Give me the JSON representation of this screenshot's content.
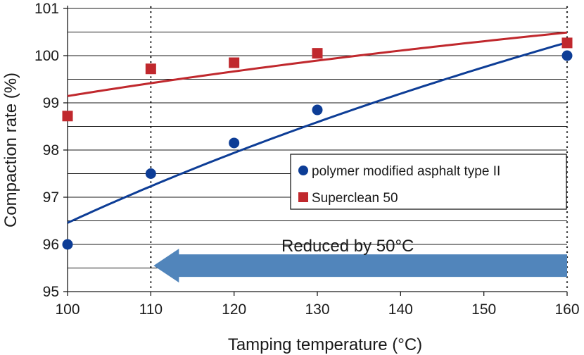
{
  "chart_data": {
    "type": "scatter",
    "xlabel": "Tamping temperature (°C)",
    "ylabel": "Compaction rate (%)",
    "xlim": [
      100,
      160
    ],
    "ylim": [
      95,
      101
    ],
    "xticks": [
      "100",
      "110",
      "120",
      "130",
      "140",
      "150",
      "160"
    ],
    "yticks": [
      "95",
      "96",
      "97",
      "98",
      "99",
      "100",
      "101"
    ],
    "grid": "horizontal at every 0.5%",
    "legend_position": "right, middle",
    "series": [
      {
        "name": "polymer modified asphalt type II",
        "color": "#0d3d96",
        "marker": "circle",
        "x": [
          100,
          110,
          120,
          130,
          160
        ],
        "y": [
          96.0,
          97.5,
          98.15,
          98.85,
          100.0
        ]
      },
      {
        "name": "Superclean 50",
        "color": "#c0282d",
        "marker": "square",
        "x": [
          100,
          110,
          120,
          130,
          160
        ],
        "y": [
          98.72,
          99.72,
          99.85,
          100.05,
          100.27
        ]
      }
    ],
    "reference_lines_x": [
      110,
      160
    ],
    "annotation": {
      "text": "Reduced by 50°C",
      "arrow_from_x": 160,
      "arrow_to_x": 110,
      "arrow_color": "#5185bb"
    }
  }
}
